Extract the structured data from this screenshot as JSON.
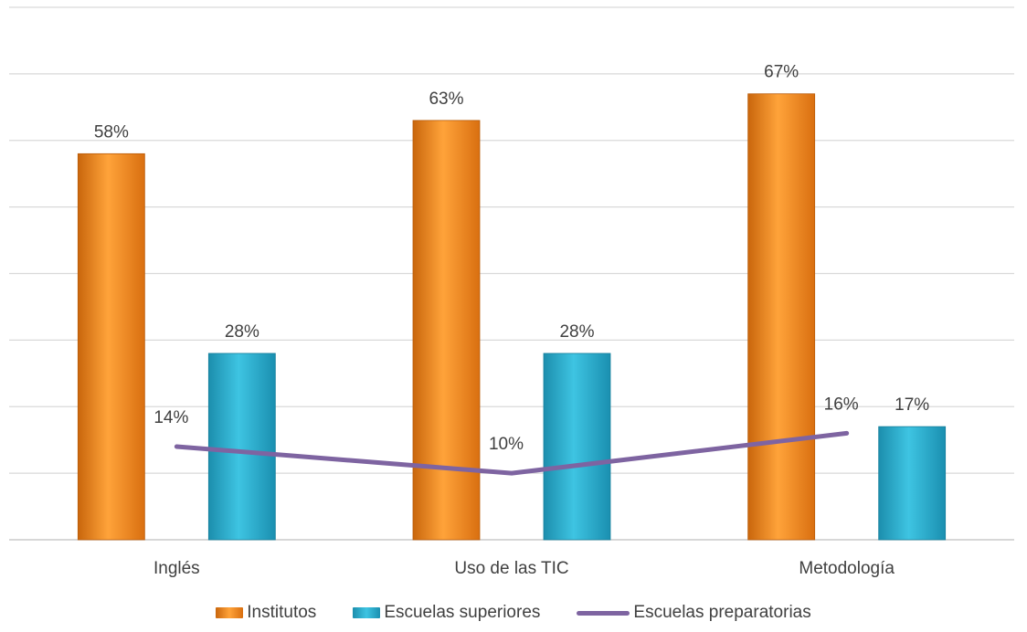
{
  "chart_data": {
    "type": "bar",
    "categories": [
      "Inglés",
      "Uso de las TIC",
      "Metodología"
    ],
    "series": [
      {
        "name": "Institutos",
        "type": "bar",
        "values": [
          58,
          63,
          67
        ],
        "labels": [
          "58%",
          "63%",
          "67%"
        ],
        "color": "#F39A2C"
      },
      {
        "name": "Escuelas superiores",
        "type": "bar",
        "values": [
          28,
          28,
          17
        ],
        "labels": [
          "28%",
          "28%",
          "17%"
        ],
        "color": "#2BB3D3"
      },
      {
        "name": "Escuelas preparatorias",
        "type": "line",
        "values": [
          14,
          10,
          16
        ],
        "labels": [
          "14%",
          "10%",
          "16%"
        ],
        "color": "#7E64A1"
      }
    ],
    "ylim": [
      0,
      80
    ],
    "grid": true,
    "legend": "bottom"
  }
}
